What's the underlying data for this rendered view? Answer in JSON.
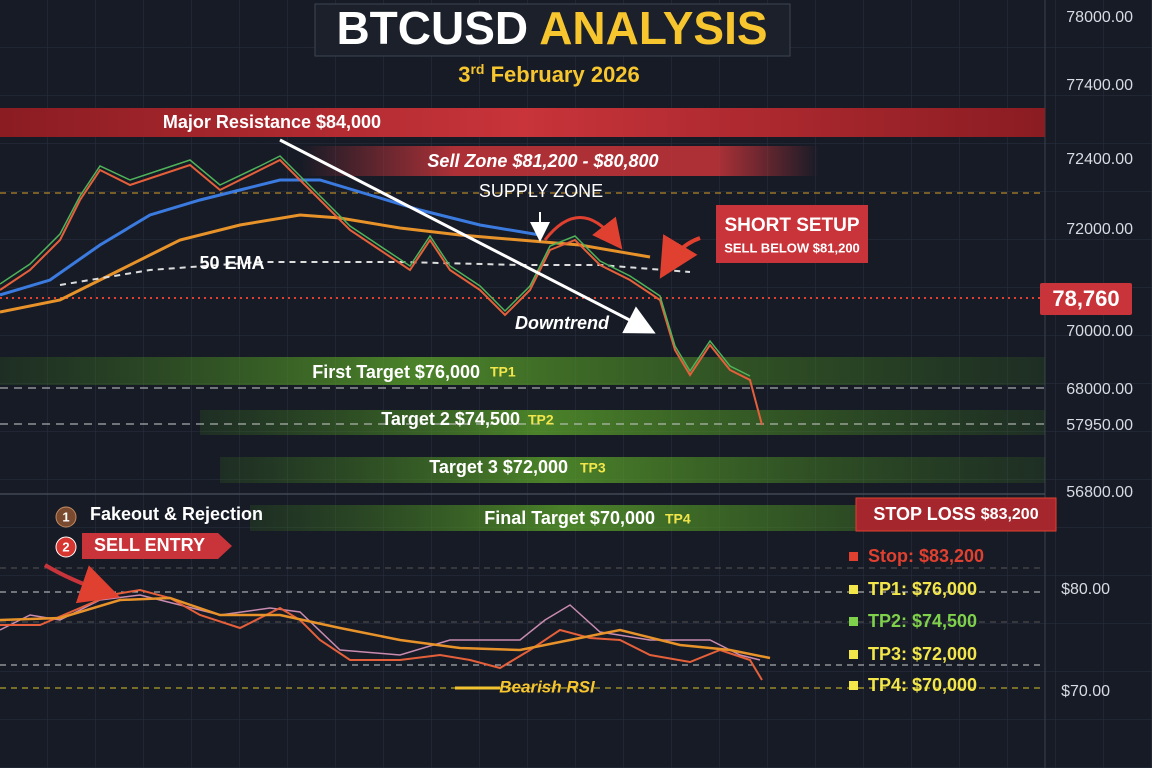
{
  "header": {
    "title_main": "BTCUSD",
    "title_accent": "ANALYSIS",
    "date_day": "3",
    "date_suffix": "rd",
    "date_rest": "February 2026"
  },
  "price_axis": {
    "ticks": [
      "78000.00",
      "77400.00",
      "72400.00",
      "72000.00",
      "70000.00",
      "68000.00",
      "57950.00",
      "56800.00"
    ],
    "current_price": "78,760"
  },
  "rsi_axis": {
    "ticks": [
      "$80.00",
      "$70.00"
    ]
  },
  "annotations": {
    "major_resistance": "Major Resistance $84,000",
    "sell_zone": "Sell Zone $81,200 - $80,800",
    "supply_zone": "SUPPLY ZONE",
    "ema_label": "50 EMA",
    "downtrend": "Downtrend",
    "short_setup_title": "SHORT SETUP",
    "short_setup_note": "SELL BELOW $81,200",
    "bearish_rsi": "Bearish RSI"
  },
  "targets": [
    {
      "label": "First Target $76,000",
      "tag": "TP1"
    },
    {
      "label": "Target 2 $74,500",
      "tag": "TP2"
    },
    {
      "label": "Target 3 $72,000",
      "tag": "TP3"
    },
    {
      "label": "Final Target $70,000",
      "tag": "TP4"
    }
  ],
  "stop_loss": {
    "label": "STOP LOSS",
    "value": "$83,200"
  },
  "steps": [
    {
      "number": "1",
      "text": "Fakeout & Rejection"
    },
    {
      "number": "2",
      "text": "SELL ENTRY"
    }
  ],
  "legend": [
    "Stop: $83,200",
    "TP1: $76,000",
    "TP2: $74,500",
    "TP3: $72,000",
    "TP4: $70,000"
  ]
}
